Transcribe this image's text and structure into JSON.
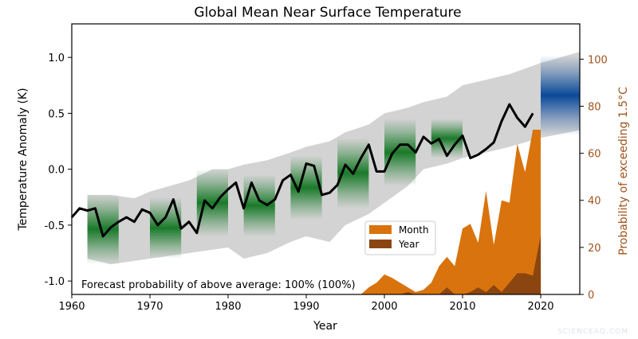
{
  "chart_data": {
    "type": "line",
    "title": "Global Mean Near Surface Temperature",
    "xlabel": "Year",
    "ylabel": "Temperature Anomaly (K)",
    "ylabel_right": "Probability of exceeding 1.5$^\\circ$C",
    "ylabel_right_display": "Probability of exceeding 1.5°C",
    "xlim": [
      1960,
      2025
    ],
    "ylim": [
      -1.12,
      1.3
    ],
    "ylim_right": [
      0,
      115
    ],
    "xticks": [
      1960,
      1970,
      1980,
      1990,
      2000,
      2010,
      2020
    ],
    "yticks": [
      "-1.0",
      "-0.5",
      "0.0",
      "0.5",
      "1.0"
    ],
    "yticks_right": [
      "0",
      "20",
      "40",
      "60",
      "80",
      "100"
    ],
    "grid": false,
    "annotation": "Forecast probability of above average: 100% (100%)",
    "colors": {
      "observed": "#000000",
      "range": "#d3d3d3",
      "hindcast": "#1a7a2a",
      "forecast": "#0a4a9a",
      "month": "#d9730d",
      "year": "#8b4510",
      "right_axis": "#a0521a"
    },
    "observed": {
      "x": [
        1960,
        1961,
        1962,
        1963,
        1964,
        1965,
        1966,
        1967,
        1968,
        1969,
        1970,
        1971,
        1972,
        1973,
        1974,
        1975,
        1976,
        1977,
        1978,
        1979,
        1980,
        1981,
        1982,
        1983,
        1984,
        1985,
        1986,
        1987,
        1988,
        1989,
        1990,
        1991,
        1992,
        1993,
        1994,
        1995,
        1996,
        1997,
        1998,
        1999,
        2000,
        2001,
        2002,
        2003,
        2004,
        2005,
        2006,
        2007,
        2008,
        2009,
        2010,
        2011,
        2012,
        2013,
        2014,
        2015,
        2016,
        2017,
        2018,
        2019
      ],
      "y": [
        -0.43,
        -0.35,
        -0.37,
        -0.35,
        -0.6,
        -0.52,
        -0.47,
        -0.43,
        -0.47,
        -0.36,
        -0.39,
        -0.5,
        -0.43,
        -0.27,
        -0.53,
        -0.47,
        -0.57,
        -0.28,
        -0.35,
        -0.25,
        -0.18,
        -0.12,
        -0.35,
        -0.12,
        -0.28,
        -0.32,
        -0.27,
        -0.1,
        -0.05,
        -0.2,
        0.05,
        0.03,
        -0.23,
        -0.21,
        -0.14,
        0.04,
        -0.04,
        0.1,
        0.22,
        -0.02,
        -0.02,
        0.14,
        0.22,
        0.22,
        0.15,
        0.29,
        0.23,
        0.27,
        0.12,
        0.22,
        0.3,
        0.1,
        0.13,
        0.18,
        0.24,
        0.43,
        0.58,
        0.46,
        0.38,
        0.5
      ]
    },
    "range": {
      "x": [
        1962,
        1965,
        1968,
        1970,
        1975,
        1978,
        1980,
        1982,
        1985,
        1988,
        1990,
        1993,
        1995,
        1998,
        2000,
        2003,
        2005,
        2008,
        2010,
        2013,
        2016,
        2020,
        2025
      ],
      "upper": [
        -0.23,
        -0.23,
        -0.26,
        -0.2,
        -0.1,
        0.0,
        0.0,
        0.04,
        0.08,
        0.15,
        0.2,
        0.25,
        0.33,
        0.4,
        0.5,
        0.55,
        0.6,
        0.65,
        0.75,
        0.8,
        0.85,
        0.95,
        1.05
      ],
      "lower": [
        -0.8,
        -0.85,
        -0.82,
        -0.8,
        -0.75,
        -0.72,
        -0.7,
        -0.8,
        -0.75,
        -0.65,
        -0.6,
        -0.65,
        -0.5,
        -0.4,
        -0.3,
        -0.15,
        0.0,
        0.05,
        0.1,
        0.15,
        0.2,
        0.28,
        0.35
      ]
    },
    "hindcasts": [
      {
        "start": 1962,
        "end": 1966,
        "low": -0.85,
        "high": -0.22,
        "center": -0.55
      },
      {
        "start": 1970,
        "end": 1974,
        "low": -0.8,
        "high": -0.25,
        "center": -0.5
      },
      {
        "start": 1976,
        "end": 1980,
        "low": -0.6,
        "high": -0.0,
        "center": -0.3
      },
      {
        "start": 1982,
        "end": 1986,
        "low": -0.6,
        "high": -0.05,
        "center": -0.3
      },
      {
        "start": 1988,
        "end": 1992,
        "low": -0.45,
        "high": 0.12,
        "center": -0.15
      },
      {
        "start": 1994,
        "end": 1998,
        "low": -0.35,
        "high": 0.28,
        "center": -0.05
      },
      {
        "start": 2000,
        "end": 2004,
        "low": -0.15,
        "high": 0.45,
        "center": 0.12
      },
      {
        "start": 2006,
        "end": 2010,
        "low": 0.1,
        "high": 0.45,
        "center": 0.2
      }
    ],
    "forecast": {
      "start": 2020,
      "end": 2025,
      "low": 0.3,
      "high": 1.02,
      "center": 0.65
    },
    "series": [
      {
        "name": "Month",
        "x": [
          1997,
          1998,
          1999,
          2000,
          2001,
          2002,
          2003,
          2004,
          2005,
          2006,
          2007,
          2008,
          2009,
          2010,
          2011,
          2012,
          2013,
          2014,
          2015,
          2016,
          2017,
          2018,
          2019,
          2020,
          2020.01
        ],
        "values": [
          0,
          3,
          5,
          8.5,
          7,
          5,
          3,
          1,
          2,
          5,
          12,
          16,
          12,
          28,
          30,
          22,
          44,
          21,
          40,
          39,
          64,
          52,
          70,
          70,
          0
        ]
      },
      {
        "name": "Year",
        "x": [
          2002,
          2003,
          2004,
          2007,
          2008,
          2009,
          2010,
          2011,
          2012,
          2013,
          2014,
          2015,
          2016,
          2017,
          2018,
          2019,
          2020,
          2020.01
        ],
        "values": [
          0,
          1,
          0,
          0,
          3,
          0,
          0,
          1,
          3,
          1,
          4,
          1,
          5,
          9,
          9,
          8,
          25,
          0
        ]
      }
    ],
    "legend_placement": "lower-center"
  },
  "watermark": "SCIENCEAQ.COM"
}
